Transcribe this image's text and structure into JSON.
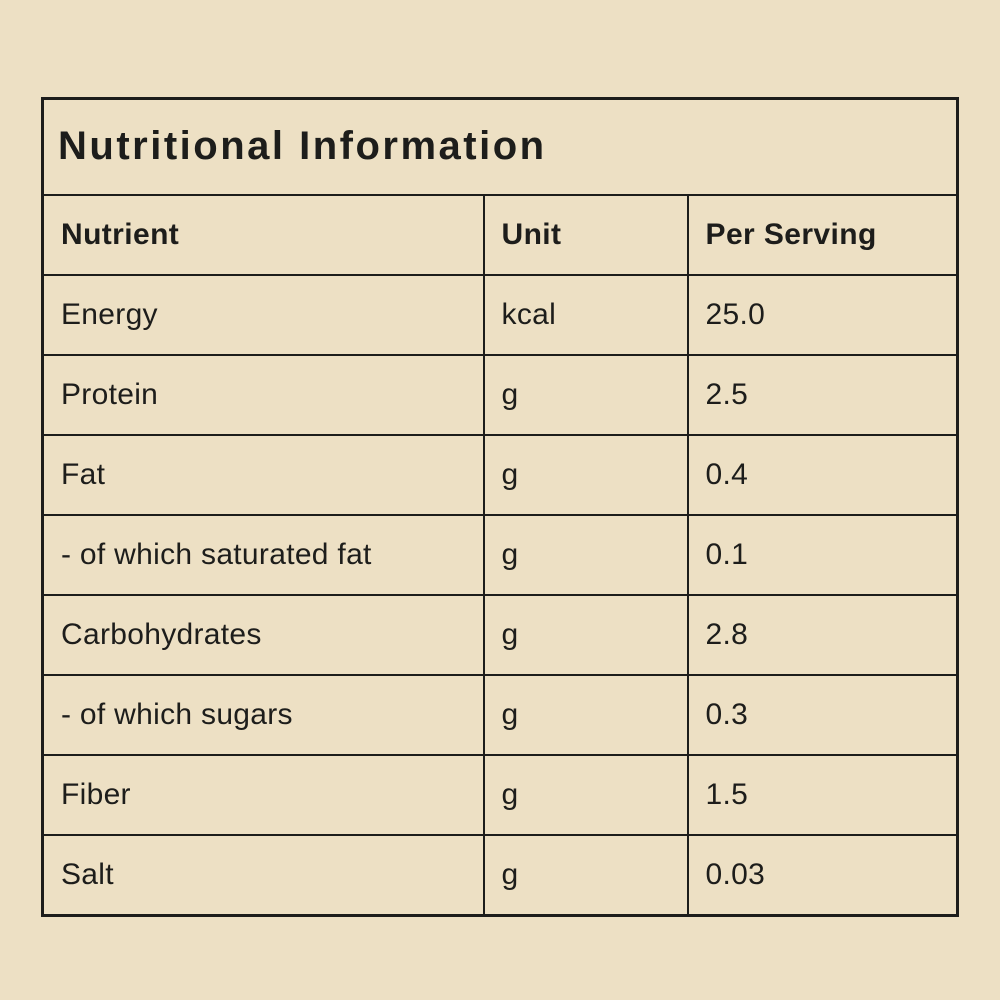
{
  "colors": {
    "background": "#EDE0C4",
    "ink": "#1D1D1B"
  },
  "label": {
    "title": "Nutritional Information",
    "columns": {
      "nutrient": "Nutrient",
      "unit": "Unit",
      "per_serving": "Per Serving"
    },
    "rows": [
      {
        "nutrient": "Energy",
        "unit": "kcal",
        "value": "25.0",
        "emphasis": "bold"
      },
      {
        "nutrient": "Protein",
        "unit": "g",
        "value": "2.5",
        "emphasis": "bold"
      },
      {
        "nutrient": "Fat",
        "unit": "g",
        "value": "0.4",
        "emphasis": "bold"
      },
      {
        "nutrient": "- of which saturated fat",
        "unit": "g",
        "value": "0.1",
        "emphasis": "normal"
      },
      {
        "nutrient": "Carbohydrates",
        "unit": "g",
        "value": "2.8",
        "emphasis": "bold"
      },
      {
        "nutrient": "- of which sugars",
        "unit": "g",
        "value": "0.3",
        "emphasis": "normal"
      },
      {
        "nutrient": "Fiber",
        "unit": "g",
        "value": "1.5",
        "emphasis": "bold"
      },
      {
        "nutrient": "Salt",
        "unit": "g",
        "value": "0.03",
        "emphasis": "bold"
      }
    ]
  }
}
